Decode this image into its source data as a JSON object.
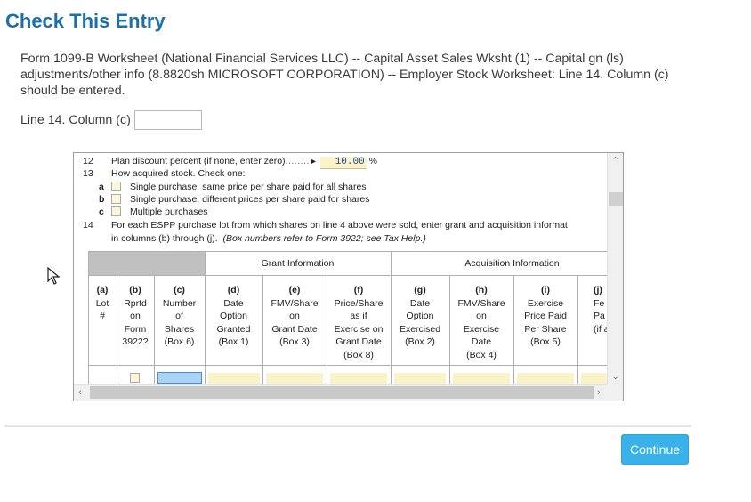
{
  "page": {
    "title": "Check This Entry",
    "message": "Form 1099-B Worksheet (National Financial Services LLC) -- Capital Asset Sales Wksht (1) -- Capital gn (ls) adjustments/other info (8.8820sh MICROSOFT CORPORATION) -- Employer Stock Worksheet: Line 14. Column (c) should be entered.",
    "field_label": "Line 14. Column (c)",
    "field_value": "",
    "continue_label": "Continue"
  },
  "form": {
    "line12": {
      "num": "12",
      "text": "Plan discount percent (if none, enter zero)",
      "dots": "........",
      "arrow": "►",
      "value": "10.00",
      "unit": "%"
    },
    "line13": {
      "num": "13",
      "text": "How acquired stock. Check one:"
    },
    "line13a": {
      "letter": "a",
      "text": "Single purchase, same price per share paid for all shares"
    },
    "line13b": {
      "letter": "b",
      "text": "Single purchase, different prices per share paid for shares"
    },
    "line13c": {
      "letter": "c",
      "text": "Multiple purchases"
    },
    "line14": {
      "num": "14",
      "text": "For each ESPP purchase lot from which shares on line 4 above were sold, enter grant and acquisition informat",
      "text2": "in columns (b) through (j).",
      "note": "(Box numbers refer to Form 3922; see Tax Help.)"
    },
    "groups": {
      "grant": "Grant Information",
      "acquisition": "Acquisition Information"
    },
    "columns": [
      {
        "letter": "(a)",
        "lines": [
          "Lot",
          "#"
        ]
      },
      {
        "letter": "(b)",
        "lines": [
          "Rprtd",
          "on",
          "Form",
          "3922?"
        ]
      },
      {
        "letter": "(c)",
        "lines": [
          "Number",
          "of",
          "Shares",
          "(Box 6)"
        ]
      },
      {
        "letter": "(d)",
        "lines": [
          "Date",
          "Option",
          "Granted",
          "(Box 1)"
        ]
      },
      {
        "letter": "(e)",
        "lines": [
          "FMV/Share",
          "on",
          "Grant Date",
          "(Box 3)"
        ]
      },
      {
        "letter": "(f)",
        "lines": [
          "Price/Share",
          "as if",
          "Exercise on",
          "Grant Date",
          "(Box 8)"
        ]
      },
      {
        "letter": "(g)",
        "lines": [
          "Date",
          "Option",
          "Exercised",
          "(Box 2)"
        ]
      },
      {
        "letter": "(h)",
        "lines": [
          "FMV/Share",
          "on",
          "Exercise",
          "Date",
          "(Box 4)"
        ]
      },
      {
        "letter": "(i)",
        "lines": [
          "Exercise",
          "Price Paid",
          "Per Share",
          "(Box 5)"
        ]
      },
      {
        "letter": "(j)",
        "lines": [
          "Fe",
          "Pa",
          "(if a"
        ]
      }
    ]
  }
}
